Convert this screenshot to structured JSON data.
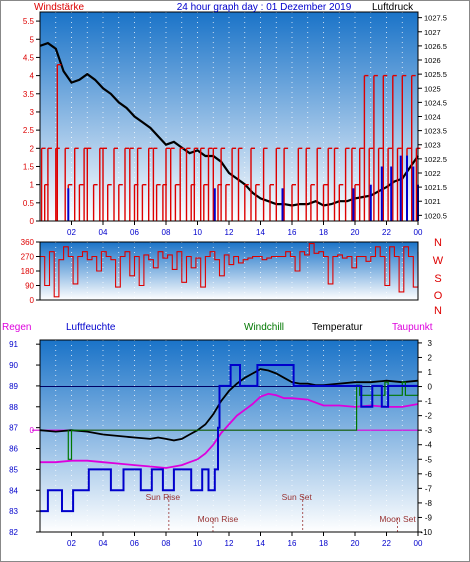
{
  "header": {
    "left_label": "Windstärke",
    "title": "24 hour graph day : 01 Dezember 2019",
    "right_label": "Luftdruck"
  },
  "colors": {
    "red": "#dd0000",
    "blue": "#0000cc",
    "green": "#007700",
    "magenta": "#dd00dd",
    "black": "#000000",
    "sky_top": "#1a73c8",
    "sky_bottom": "#ffffff"
  },
  "chart_data": [
    {
      "id": "wind_pressure",
      "type": "line",
      "title": "24 hour graph day : 01 Dezember 2019",
      "left_axis_label": "Windstärke",
      "right_axis_label": "Luftdruck",
      "x_ticks": [
        "02",
        "04",
        "06",
        "08",
        "10",
        "12",
        "14",
        "16",
        "18",
        "20",
        "22",
        "00"
      ],
      "left_ticks": [
        "0",
        "0.5",
        "1",
        "1.5",
        "2",
        "2.5",
        "3",
        "3.5",
        "4",
        "4.5",
        "5",
        "5.5"
      ],
      "left_range": [
        0,
        5.75
      ],
      "right_ticks": [
        "1020.5",
        "1021",
        "1021.5",
        "1022",
        "1022.5",
        "1023",
        "1023.5",
        "1024",
        "1024.5",
        "1025",
        "1025.5",
        "1026",
        "1026.5",
        "1027",
        "1027.5"
      ],
      "right_range": [
        1020.3,
        1027.7
      ],
      "x_range": [
        0,
        24
      ],
      "series": [
        {
          "name": "Luftdruck",
          "color": "#000000",
          "x": [
            0,
            0.5,
            1,
            1.5,
            2,
            2.5,
            3,
            3.5,
            4,
            4.5,
            5,
            5.5,
            6,
            6.5,
            7,
            7.5,
            8,
            8.5,
            9,
            9.5,
            10,
            10.5,
            11,
            11.5,
            12,
            12.5,
            13,
            13.5,
            14,
            14.5,
            15,
            15.5,
            16,
            16.5,
            17,
            17.5,
            18,
            18.5,
            19,
            19.5,
            20,
            20.5,
            21,
            21.5,
            22,
            22.5,
            23,
            23.5,
            24
          ],
          "y": [
            1026.5,
            1026.6,
            1026.4,
            1025.6,
            1025.2,
            1025.3,
            1025.5,
            1025.3,
            1025.0,
            1024.8,
            1024.5,
            1024.3,
            1024.0,
            1023.8,
            1023.6,
            1023.3,
            1023.0,
            1023.1,
            1022.9,
            1022.7,
            1022.8,
            1022.6,
            1022.6,
            1022.4,
            1022.0,
            1021.8,
            1021.6,
            1021.3,
            1021.1,
            1021.0,
            1020.9,
            1020.9,
            1020.85,
            1020.9,
            1020.9,
            1021.0,
            1020.85,
            1020.9,
            1021.0,
            1021.0,
            1021.1,
            1021.15,
            1021.2,
            1021.35,
            1021.5,
            1021.7,
            1021.8,
            1022.2,
            1022.6
          ]
        },
        {
          "name": "Windstärke",
          "color": "#dd0000",
          "x": [
            0.1,
            0.3,
            0.5,
            1.0,
            1.1,
            1.6,
            1.8,
            2.2,
            2.5,
            2.8,
            3.0,
            3.4,
            3.8,
            4.0,
            4.3,
            4.7,
            5.0,
            5.4,
            5.7,
            6.0,
            6.2,
            6.5,
            6.9,
            7.2,
            7.4,
            7.8,
            8.0,
            8.3,
            8.6,
            8.9,
            9.3,
            9.6,
            9.8,
            10.2,
            10.4,
            10.7,
            11.0,
            11.3,
            11.5,
            11.8,
            12.2,
            12.6,
            13.0,
            13.4,
            13.7,
            14.2,
            14.6,
            15.0,
            15.5,
            16.0,
            16.4,
            16.9,
            17.2,
            17.6,
            18.0,
            18.3,
            18.7,
            19.0,
            19.4,
            19.8,
            20.0,
            20.3,
            20.6,
            20.9,
            21.2,
            21.5,
            21.8,
            22.1,
            22.4,
            22.7,
            23.0,
            23.3,
            23.6,
            23.9
          ],
          "y": [
            2,
            1,
            2,
            2,
            4.3,
            2,
            1,
            2,
            1,
            2,
            2,
            1,
            2,
            2,
            1,
            2,
            1,
            2,
            2,
            1,
            2,
            1,
            2,
            2,
            1,
            1,
            2,
            2,
            1,
            2,
            2,
            1,
            2,
            2,
            1,
            2,
            2,
            1,
            2,
            1,
            2,
            2,
            1,
            2,
            1,
            2,
            1,
            2,
            2,
            1,
            2,
            2,
            1,
            2,
            1,
            2,
            2,
            1,
            2,
            2,
            1,
            2,
            4,
            2,
            4,
            2,
            4,
            2,
            4,
            2,
            4,
            2,
            4,
            2
          ]
        },
        {
          "name": "Böen",
          "color": "#0000cc",
          "x": [
            1.8,
            11.1,
            15.4,
            19.9,
            21.0,
            21.7,
            22.3,
            22.9,
            23.3,
            23.7,
            24.0
          ],
          "y": [
            0.9,
            0.9,
            0.9,
            0.9,
            1.0,
            1.5,
            1.5,
            1.8,
            1.8,
            1.5,
            1.0
          ]
        }
      ]
    },
    {
      "id": "wind_direction",
      "type": "line",
      "left_ticks": [
        "0",
        "90",
        "180",
        "270",
        "360"
      ],
      "left_range": [
        0,
        360
      ],
      "compass_labels": [
        "N",
        "W",
        "S",
        "O",
        "N"
      ],
      "x_range": [
        0,
        24
      ],
      "series": [
        {
          "name": "Windrichtung",
          "color": "#dd0000",
          "x": [
            0,
            0.3,
            0.6,
            0.9,
            1.2,
            1.5,
            1.8,
            2.1,
            2.4,
            2.7,
            3.0,
            3.3,
            3.6,
            3.9,
            4.2,
            4.5,
            4.8,
            5.1,
            5.4,
            5.7,
            6.0,
            6.3,
            6.6,
            6.9,
            7.2,
            7.5,
            7.8,
            8.1,
            8.4,
            8.7,
            9.0,
            9.3,
            9.6,
            9.9,
            10.2,
            10.5,
            10.8,
            11.1,
            11.4,
            11.7,
            12.0,
            12.3,
            12.6,
            12.9,
            13.2,
            13.5,
            13.8,
            14.1,
            14.4,
            14.7,
            15.0,
            15.3,
            15.6,
            15.9,
            16.2,
            16.5,
            16.8,
            17.1,
            17.4,
            17.7,
            18.0,
            18.3,
            18.6,
            18.9,
            19.2,
            19.5,
            19.8,
            20.1,
            20.4,
            20.7,
            21.0,
            21.3,
            21.6,
            21.9,
            22.2,
            22.5,
            22.8,
            23.1,
            23.4,
            23.7,
            24.0
          ],
          "y": [
            270,
            90,
            300,
            20,
            250,
            330,
            270,
            100,
            270,
            300,
            250,
            270,
            180,
            300,
            270,
            250,
            80,
            270,
            300,
            150,
            270,
            90,
            280,
            250,
            200,
            300,
            260,
            280,
            190,
            300,
            110,
            270,
            200,
            260,
            80,
            270,
            300,
            250,
            150,
            280,
            220,
            270,
            230,
            250,
            260,
            270,
            270,
            250,
            260,
            270,
            270,
            270,
            300,
            270,
            180,
            300,
            280,
            350,
            290,
            300,
            270,
            100,
            270,
            280,
            260,
            270,
            200,
            270,
            270,
            240,
            270,
            330,
            270,
            90,
            330,
            270,
            50,
            330,
            270,
            80,
            300
          ]
        }
      ]
    },
    {
      "id": "temperature_humidity",
      "type": "line",
      "header_labels": {
        "regen": "Regen",
        "humidity": "Luftfeuchte",
        "windchill": "Windchill",
        "temperature": "Temperatur",
        "dewpoint": "Taupunkt"
      },
      "x_ticks": [
        "02",
        "04",
        "06",
        "08",
        "10",
        "12",
        "14",
        "16",
        "18",
        "20",
        "22",
        "00"
      ],
      "x_range": [
        0,
        24
      ],
      "left_ticks": [
        "82",
        "83",
        "84",
        "85",
        "86",
        "87",
        "88",
        "89",
        "90",
        "91"
      ],
      "left_range": [
        82,
        91.2
      ],
      "right_ticks": [
        "3",
        "2",
        "1",
        "0",
        "-1",
        "-2",
        "-3",
        "-4",
        "-5",
        "-6",
        "-7",
        "-8",
        "-9",
        "-10"
      ],
      "right_range": [
        -10,
        3.2
      ],
      "rain_zero_label": "0",
      "annotations": [
        {
          "text": "Sun Rise",
          "x": 7.8
        },
        {
          "text": "Moon Rise",
          "x": 11.3
        },
        {
          "text": "Sun Set",
          "x": 16.3
        },
        {
          "text": "Moon Set",
          "x": 22.7
        }
      ],
      "series": [
        {
          "name": "Temperatur",
          "color": "#000000",
          "x": [
            0,
            1,
            2,
            3,
            4,
            5,
            6,
            7,
            7.5,
            8,
            8.5,
            9,
            9.5,
            10,
            10.5,
            11,
            11.5,
            12,
            12.5,
            13,
            13.5,
            14,
            14.5,
            15,
            15.5,
            16,
            16.5,
            17,
            17.5,
            18,
            19,
            20,
            21,
            22,
            23,
            24
          ],
          "y": [
            -3.0,
            -3.1,
            -3.0,
            -3.1,
            -3.3,
            -3.4,
            -3.5,
            -3.6,
            -3.5,
            -3.6,
            -3.7,
            -3.6,
            -3.3,
            -3.0,
            -2.6,
            -1.9,
            -1.0,
            -0.3,
            0.2,
            0.6,
            0.9,
            1.2,
            1.1,
            0.9,
            0.6,
            0.3,
            0.2,
            0.2,
            0.1,
            0.1,
            0.2,
            0.3,
            0.3,
            0.4,
            0.3,
            0.4
          ]
        },
        {
          "name": "Taupunkt",
          "color": "#dd00dd",
          "x": [
            0,
            1,
            2,
            3,
            4,
            5,
            6,
            7,
            8,
            9,
            9.5,
            10,
            10.5,
            11,
            11.5,
            12,
            12.5,
            13,
            13.5,
            14,
            14.5,
            15,
            15.5,
            16,
            17,
            18,
            19,
            20,
            21,
            22,
            23,
            24
          ],
          "y": [
            -5.2,
            -5.2,
            -5.1,
            -5.1,
            -5.2,
            -5.3,
            -5.4,
            -5.5,
            -5.6,
            -5.4,
            -5.2,
            -5.0,
            -4.6,
            -4.0,
            -3.2,
            -2.6,
            -2.0,
            -1.6,
            -1.2,
            -0.7,
            -0.5,
            -0.6,
            -0.8,
            -0.8,
            -0.9,
            -1.3,
            -1.3,
            -1.4,
            -1.3,
            -1.4,
            -1.4,
            -1.2
          ]
        },
        {
          "name": "Windchill",
          "color": "#007700",
          "x": [
            1.8,
            1.8,
            2.0,
            20.1,
            20.3,
            21.9,
            22.1,
            23.0,
            23.2,
            24.0
          ],
          "y": [
            -3.0,
            -5.0,
            -3.0,
            0.1,
            -0.6,
            0.3,
            -0.6,
            0.3,
            -0.6,
            0.4
          ]
        },
        {
          "name": "Luftfeuchte",
          "color": "#0000cc",
          "x": [
            0,
            0.4,
            0.5,
            1.3,
            1.4,
            2.0,
            2.1,
            3.0,
            3.1,
            4.4,
            4.5,
            5.2,
            5.3,
            6.3,
            6.4,
            7.0,
            7.1,
            7.7,
            7.8,
            8.4,
            8.5,
            9.5,
            9.6,
            10.2,
            10.3,
            10.6,
            10.7,
            11.0,
            11.1,
            11.3,
            11.4,
            12.0,
            12.1,
            12.6,
            12.7,
            13.7,
            13.8,
            16.0,
            16.1,
            20.3,
            20.4,
            21.0,
            21.1,
            21.6,
            21.7,
            22.0,
            22.1,
            24.0
          ],
          "y": [
            83,
            83,
            84,
            84,
            83,
            83,
            84,
            84,
            85,
            85,
            84,
            84,
            85,
            85,
            84,
            84,
            85,
            85,
            84,
            84,
            85,
            85,
            84,
            84,
            85,
            85,
            84,
            84,
            85,
            87,
            89,
            89,
            90,
            90,
            89,
            89,
            90,
            90,
            89,
            89,
            88,
            88,
            89,
            89,
            88,
            88,
            89,
            89
          ]
        }
      ]
    }
  ]
}
